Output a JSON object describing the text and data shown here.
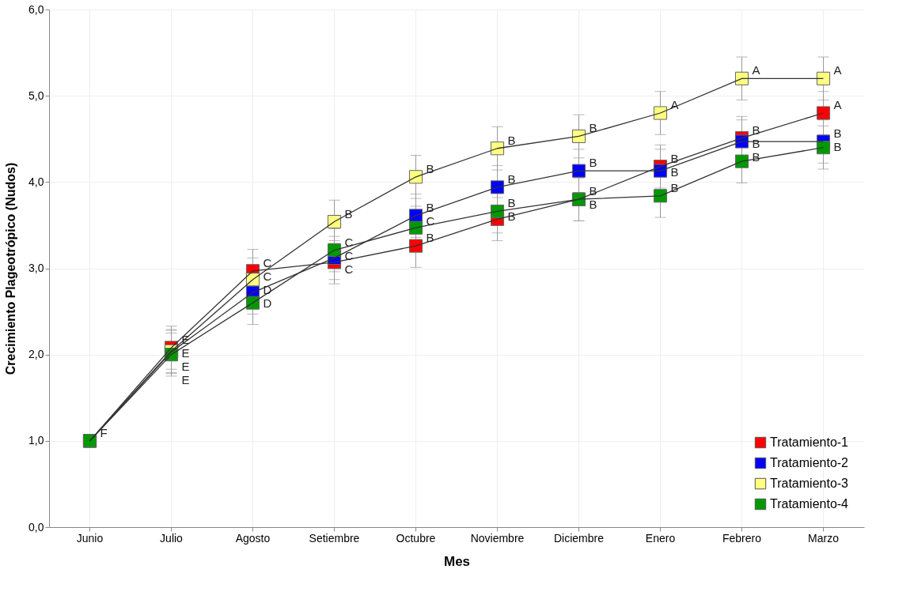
{
  "chart_data": {
    "type": "line",
    "xlabel": "Mes",
    "ylabel": "Crecimiento Plageotrópico (Nudos)",
    "categories": [
      "Junio",
      "Julio",
      "Agosto",
      "Setiembre",
      "Octubre",
      "Noviembre",
      "Diciembre",
      "Enero",
      "Febrero",
      "Marzo"
    ],
    "ylim": [
      0,
      6
    ],
    "yticks": [
      {
        "value": 0,
        "label": "0,0"
      },
      {
        "value": 1,
        "label": "1,0"
      },
      {
        "value": 2,
        "label": "2,0"
      },
      {
        "value": 3,
        "label": "3,0"
      },
      {
        "value": 4,
        "label": "4,0"
      },
      {
        "value": 5,
        "label": "5,0"
      },
      {
        "value": 6,
        "label": "6,0"
      }
    ],
    "grid": true,
    "legend": "bottom right",
    "marker": "square",
    "line_style": "solid",
    "series": [
      {
        "name": "Tratamiento-1",
        "color": "#ff0000",
        "values": [
          1.0,
          2.08,
          2.97,
          3.07,
          3.26,
          3.57,
          3.8,
          4.18,
          4.51,
          4.8
        ],
        "errors": [
          null,
          0.25,
          0.25,
          0.25,
          0.25,
          0.25,
          0.25,
          0.25,
          0.25,
          0.25
        ],
        "value_labels": [
          "F",
          "E",
          "C",
          "C",
          "B",
          "B",
          "B",
          "B",
          "B",
          "A"
        ]
      },
      {
        "name": "Tratamiento-2",
        "color": "#0000ff",
        "values": [
          1.0,
          2.03,
          2.72,
          3.12,
          3.61,
          3.94,
          4.13,
          4.13,
          4.47,
          4.47
        ],
        "errors": [
          null,
          0.25,
          0.25,
          0.25,
          0.25,
          0.25,
          0.25,
          0.25,
          0.25,
          0.25
        ],
        "value_labels": [
          null,
          "E",
          "D",
          "C",
          "B",
          "B",
          "B",
          "B",
          "B",
          "B"
        ]
      },
      {
        "name": "Tratamiento-3",
        "color": "#ffff80",
        "values": [
          1.0,
          2.04,
          2.87,
          3.54,
          4.06,
          4.39,
          4.53,
          4.8,
          5.2,
          5.2
        ],
        "errors": [
          null,
          0.25,
          0.25,
          0.25,
          0.25,
          0.25,
          0.25,
          0.25,
          0.25,
          0.25
        ],
        "value_labels": [
          null,
          "E",
          "C",
          "B",
          "B",
          "B",
          "B",
          "A",
          "A",
          "A"
        ]
      },
      {
        "name": "Tratamiento-4",
        "color": "#009900",
        "values": [
          1.0,
          2.0,
          2.6,
          3.21,
          3.47,
          3.66,
          3.8,
          3.84,
          4.24,
          4.4
        ],
        "errors": [
          null,
          0.25,
          0.25,
          0.25,
          0.25,
          0.25,
          0.25,
          0.25,
          0.25,
          0.25
        ],
        "value_labels": [
          null,
          "E",
          "D",
          "C",
          "C",
          "B",
          "B",
          "B",
          "B",
          "B"
        ]
      }
    ]
  }
}
